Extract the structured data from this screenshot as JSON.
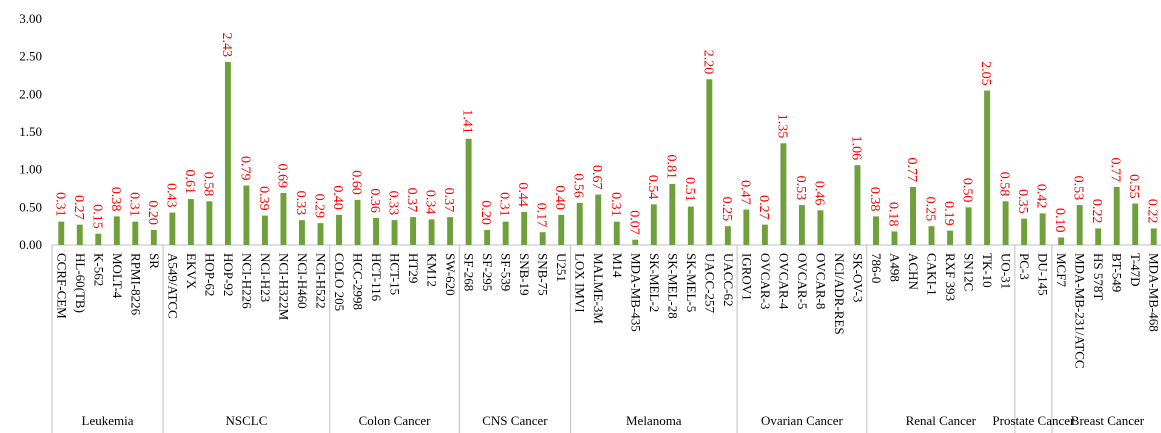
{
  "chart_data": {
    "type": "bar",
    "color": "#70a03c",
    "label_color": "#ff0000",
    "ylim": [
      0,
      3
    ],
    "yticks": [
      {
        "value": 0,
        "label": "0.00"
      },
      {
        "value": 0.5,
        "label": "0.50"
      },
      {
        "value": 1,
        "label": "1.00"
      },
      {
        "value": 1.5,
        "label": "1.50"
      },
      {
        "value": 2,
        "label": "2.00"
      },
      {
        "value": 2.5,
        "label": "2.50"
      },
      {
        "value": 3,
        "label": "3.00"
      }
    ],
    "groups": [
      {
        "name": "Leukemia",
        "categories": [
          "CCRF-CEM",
          "HL-60(TB)",
          "K-562",
          "MOLT-4",
          "RPMI-8226",
          "SR"
        ],
        "values": [
          0.31,
          0.27,
          0.15,
          0.38,
          0.31,
          0.2
        ],
        "value_labels": [
          "0.31",
          "0.27",
          "0.15",
          "0.38",
          "0.31",
          "0.20"
        ]
      },
      {
        "name": "NSCLC",
        "categories": [
          "A549/ATCC",
          "EKVX",
          "HOP-62",
          "HOP-92",
          "NCI-H226",
          "NCI-H23",
          "NCI-H322M",
          "NCI-H460",
          "NCI-H522"
        ],
        "values": [
          0.43,
          0.61,
          0.58,
          2.43,
          0.79,
          0.39,
          0.69,
          0.33,
          0.29
        ],
        "value_labels": [
          "0.43",
          "0.61",
          "0.58",
          "2.43",
          "0.79",
          "0.39",
          "0.69",
          "0.33",
          "0.29"
        ]
      },
      {
        "name": "Colon Cancer",
        "categories": [
          "COLO 205",
          "HCC-2998",
          "HCT-116",
          "HCT-15",
          "HT29",
          "KM12",
          "SW-620"
        ],
        "values": [
          0.4,
          0.6,
          0.36,
          0.33,
          0.37,
          0.34,
          0.37
        ],
        "value_labels": [
          "0.40",
          "0.60",
          "0.36",
          "0.33",
          "0.37",
          "0.34",
          "0.37"
        ]
      },
      {
        "name": "CNS Cancer",
        "categories": [
          "SF-268",
          "SF-295",
          "SF-539",
          "SNB-19",
          "SNB-75",
          "U251"
        ],
        "values": [
          1.41,
          0.2,
          0.31,
          0.44,
          0.17,
          0.4
        ],
        "value_labels": [
          "1.41",
          "0.20",
          "0.31",
          "0.44",
          "0.17",
          "0.40"
        ]
      },
      {
        "name": "Melanoma",
        "categories": [
          "LOX IMVI",
          "MALME-3M",
          "M14",
          "MDA-MB-435",
          "SK-MEL-2",
          "SK-MEL-28",
          "SK-MEL-5",
          "UACC-257",
          "UACC-62"
        ],
        "values": [
          0.56,
          0.67,
          0.31,
          0.07,
          0.54,
          0.81,
          0.51,
          2.2,
          0.25
        ],
        "value_labels": [
          "0.56",
          "0.67",
          "0.31",
          "0.07",
          "0.54",
          "0.81",
          "0.51",
          "2.20",
          "0.25"
        ]
      },
      {
        "name": "Ovarian Cancer",
        "categories": [
          "IGROV1",
          "OVCAR-3",
          "OVCAR-4",
          "OVCAR-5",
          "OVCAR-8",
          "NCI/ADR-RES",
          "SK-OV-3"
        ],
        "values": [
          0.47,
          0.27,
          1.35,
          0.53,
          0.46,
          null,
          1.06
        ],
        "value_labels": [
          "0.47",
          "0.27",
          "1.35",
          "0.53",
          "0.46",
          null,
          "1.06"
        ]
      },
      {
        "name": "Renal Cancer",
        "categories": [
          "786-0",
          "A498",
          "ACHN",
          "CAKI-1",
          "RXF 393",
          "SN12C",
          "TK-10",
          "UO-31"
        ],
        "values": [
          0.38,
          0.18,
          0.77,
          0.25,
          0.19,
          0.5,
          2.05,
          0.58
        ],
        "value_labels": [
          "0.38",
          "0.18",
          "0.77",
          "0.25",
          "0.19",
          "0.50",
          "2.05",
          "0.58"
        ]
      },
      {
        "name": "Prostate Cancer",
        "categories": [
          "PC-3",
          "DU-145"
        ],
        "values": [
          0.35,
          0.42
        ],
        "value_labels": [
          "0.35",
          "0.42"
        ]
      },
      {
        "name": "Breast Cancer",
        "categories": [
          "MCF7",
          "MDA-MB-231/ATCC",
          "HS 578T",
          "BT-549",
          "T-47D",
          "MDA-MB-468"
        ],
        "values": [
          0.1,
          0.53,
          0.22,
          0.77,
          0.55,
          0.22
        ],
        "value_labels": [
          "0.10",
          "0.53",
          "0.22",
          "0.77",
          "0.55",
          "0.22"
        ]
      }
    ]
  }
}
